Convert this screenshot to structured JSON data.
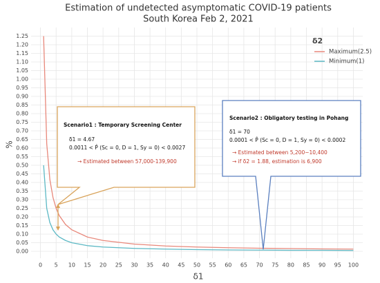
{
  "chart_data": {
    "type": "line",
    "title": "Estimation of undetected asymptomatic COVID-19 patients",
    "subtitle": "South Korea Feb 2, 2021",
    "x_label": "δ1",
    "y_label": "%",
    "legend_title": "δ2",
    "x": [
      1,
      2,
      3,
      4,
      5,
      6,
      8,
      10,
      15,
      20,
      30,
      40,
      50,
      60,
      70,
      80,
      90,
      100
    ],
    "series": [
      {
        "name": "Maximum(2.5)",
        "color": "#e8877a",
        "values": [
          1.25,
          0.625,
          0.417,
          0.313,
          0.25,
          0.208,
          0.156,
          0.125,
          0.083,
          0.063,
          0.042,
          0.031,
          0.025,
          0.021,
          0.018,
          0.016,
          0.014,
          0.013
        ]
      },
      {
        "name": "Minimum(1)",
        "color": "#5bb8c4",
        "values": [
          0.5,
          0.25,
          0.167,
          0.125,
          0.1,
          0.083,
          0.063,
          0.05,
          0.033,
          0.025,
          0.017,
          0.013,
          0.01,
          0.008,
          0.007,
          0.006,
          0.006,
          0.005
        ]
      }
    ],
    "xlim": [
      -3,
      103
    ],
    "xticks": [
      0,
      5,
      10,
      15,
      20,
      25,
      30,
      35,
      40,
      45,
      50,
      55,
      60,
      65,
      70,
      75,
      80,
      85,
      90,
      95,
      100
    ],
    "ylim": [
      -0.04,
      1.3
    ],
    "yticks": [
      {
        "value": 0,
        "label": "0.00"
      },
      {
        "value": 0.05,
        "label": "0.05"
      },
      {
        "value": 0.1,
        "label": "0.10"
      },
      {
        "value": 0.15,
        "label": "0.15"
      },
      {
        "value": 0.2,
        "label": "0.20"
      },
      {
        "value": 0.25,
        "label": "0.25"
      },
      {
        "value": 0.3,
        "label": "0.30"
      },
      {
        "value": 0.35,
        "label": "0.35"
      },
      {
        "value": 0.4,
        "label": "0.40"
      },
      {
        "value": 0.45,
        "label": "0.45"
      },
      {
        "value": 0.5,
        "label": "0.50"
      },
      {
        "value": 0.55,
        "label": "0.55"
      },
      {
        "value": 0.6,
        "label": "0.60"
      },
      {
        "value": 0.65,
        "label": "0.65"
      },
      {
        "value": 0.7,
        "label": "0.70"
      },
      {
        "value": 0.75,
        "label": "0.75"
      },
      {
        "value": 0.8,
        "label": "0.80"
      },
      {
        "value": 0.85,
        "label": "0.85"
      },
      {
        "value": 0.9,
        "label": "0.90"
      },
      {
        "value": 0.95,
        "label": "0.95"
      },
      {
        "value": 1,
        "label": "1.00"
      },
      {
        "value": 1.05,
        "label": "1.05"
      },
      {
        "value": 1.1,
        "label": "1.10"
      },
      {
        "value": 1.15,
        "label": "1.15"
      },
      {
        "value": 1.2,
        "label": "1.20"
      },
      {
        "value": 1.25,
        "label": "1.25"
      }
    ],
    "grid": true,
    "legend": "right",
    "annotations": [
      {
        "lines": [
          "Scenario1 : Temporary Screening Center",
          "δ1 = 4.67",
          "0.0011 < P̂ (Sc = 0, D = 1, Sy = 0) < 0.0027",
          "→ Estimated between 57,000-139,900"
        ]
      },
      {
        "lines": [
          "Scenario2 : Obligatory testing in Pohang",
          "δ1 = 70",
          "0.0001 < P̂ (Sc = 0, D = 1, Sy = 0) < 0.0002",
          "→ Estimated between 5,200−10,400",
          "→ if δ2 = 1.88, estimation is 6,900"
        ]
      }
    ]
  }
}
